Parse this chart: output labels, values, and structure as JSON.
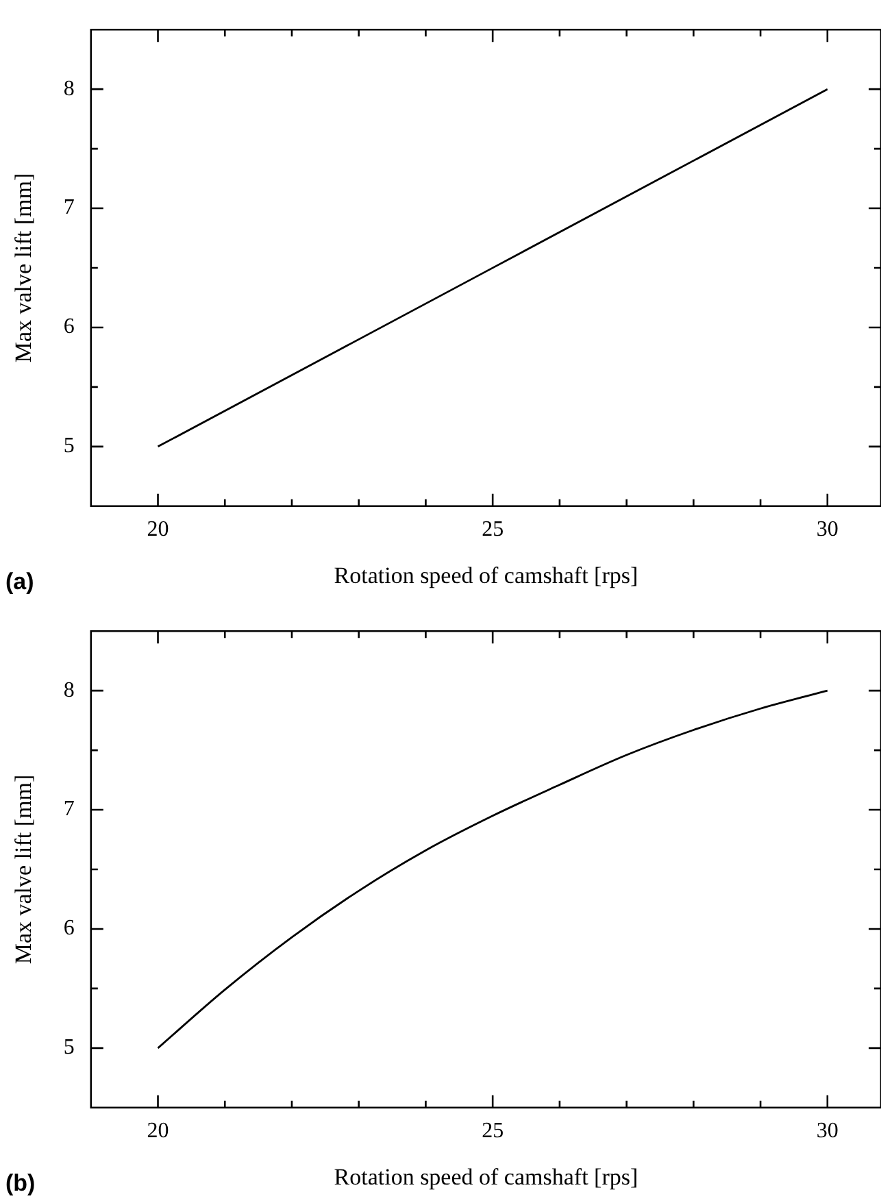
{
  "chart_data": [
    {
      "type": "line",
      "xlabel": "Rotation speed of camshaft [rps]",
      "ylabel": "Max valve lift [mm]",
      "annotations": [
        "(a)"
      ],
      "x": [
        20,
        30
      ],
      "series": [
        {
          "color": "#000000",
          "values": [
            5,
            8
          ]
        }
      ],
      "xlim": [
        19,
        30.8
      ],
      "ylim": [
        4.5,
        8.5
      ],
      "xticks": [
        20,
        {
          "value": 21,
          "label": null
        },
        {
          "value": 22,
          "label": null
        },
        {
          "value": 23,
          "label": null
        },
        {
          "value": 24,
          "label": null
        },
        25,
        {
          "value": 26,
          "label": null
        },
        {
          "value": 27,
          "label": null
        },
        {
          "value": 28,
          "label": null
        },
        {
          "value": 29,
          "label": null
        },
        30
      ],
      "yticks": [
        5,
        {
          "value": 5.5,
          "label": null
        },
        6,
        {
          "value": 6.5,
          "label": null
        },
        7,
        {
          "value": 7.5,
          "label": null
        },
        8
      ],
      "grid": false,
      "legend": false,
      "marker": "none",
      "line_style": "solid"
    },
    {
      "type": "line",
      "xlabel": "Rotation speed of camshaft [rps]",
      "ylabel": "Max valve lift [mm]",
      "annotations": [
        "(b)"
      ],
      "x": [
        20,
        21,
        22,
        23,
        24,
        25,
        26,
        27,
        28,
        29,
        30
      ],
      "series": [
        {
          "color": "#000000",
          "values": [
            5,
            5.49,
            5.93,
            6.32,
            6.66,
            6.95,
            7.21,
            7.46,
            7.67,
            7.85,
            8
          ]
        }
      ],
      "xlim": [
        19,
        30.8
      ],
      "ylim": [
        4.5,
        8.5
      ],
      "xticks": [
        20,
        {
          "value": 21,
          "label": null
        },
        {
          "value": 22,
          "label": null
        },
        {
          "value": 23,
          "label": null
        },
        {
          "value": 24,
          "label": null
        },
        25,
        {
          "value": 26,
          "label": null
        },
        {
          "value": 27,
          "label": null
        },
        {
          "value": 28,
          "label": null
        },
        {
          "value": 29,
          "label": null
        },
        30
      ],
      "yticks": [
        5,
        {
          "value": 5.5,
          "label": null
        },
        6,
        {
          "value": 6.5,
          "label": null
        },
        7,
        {
          "value": 7.5,
          "label": null
        },
        8
      ],
      "grid": false,
      "legend": false,
      "marker": "none",
      "line_style": "solid"
    }
  ]
}
